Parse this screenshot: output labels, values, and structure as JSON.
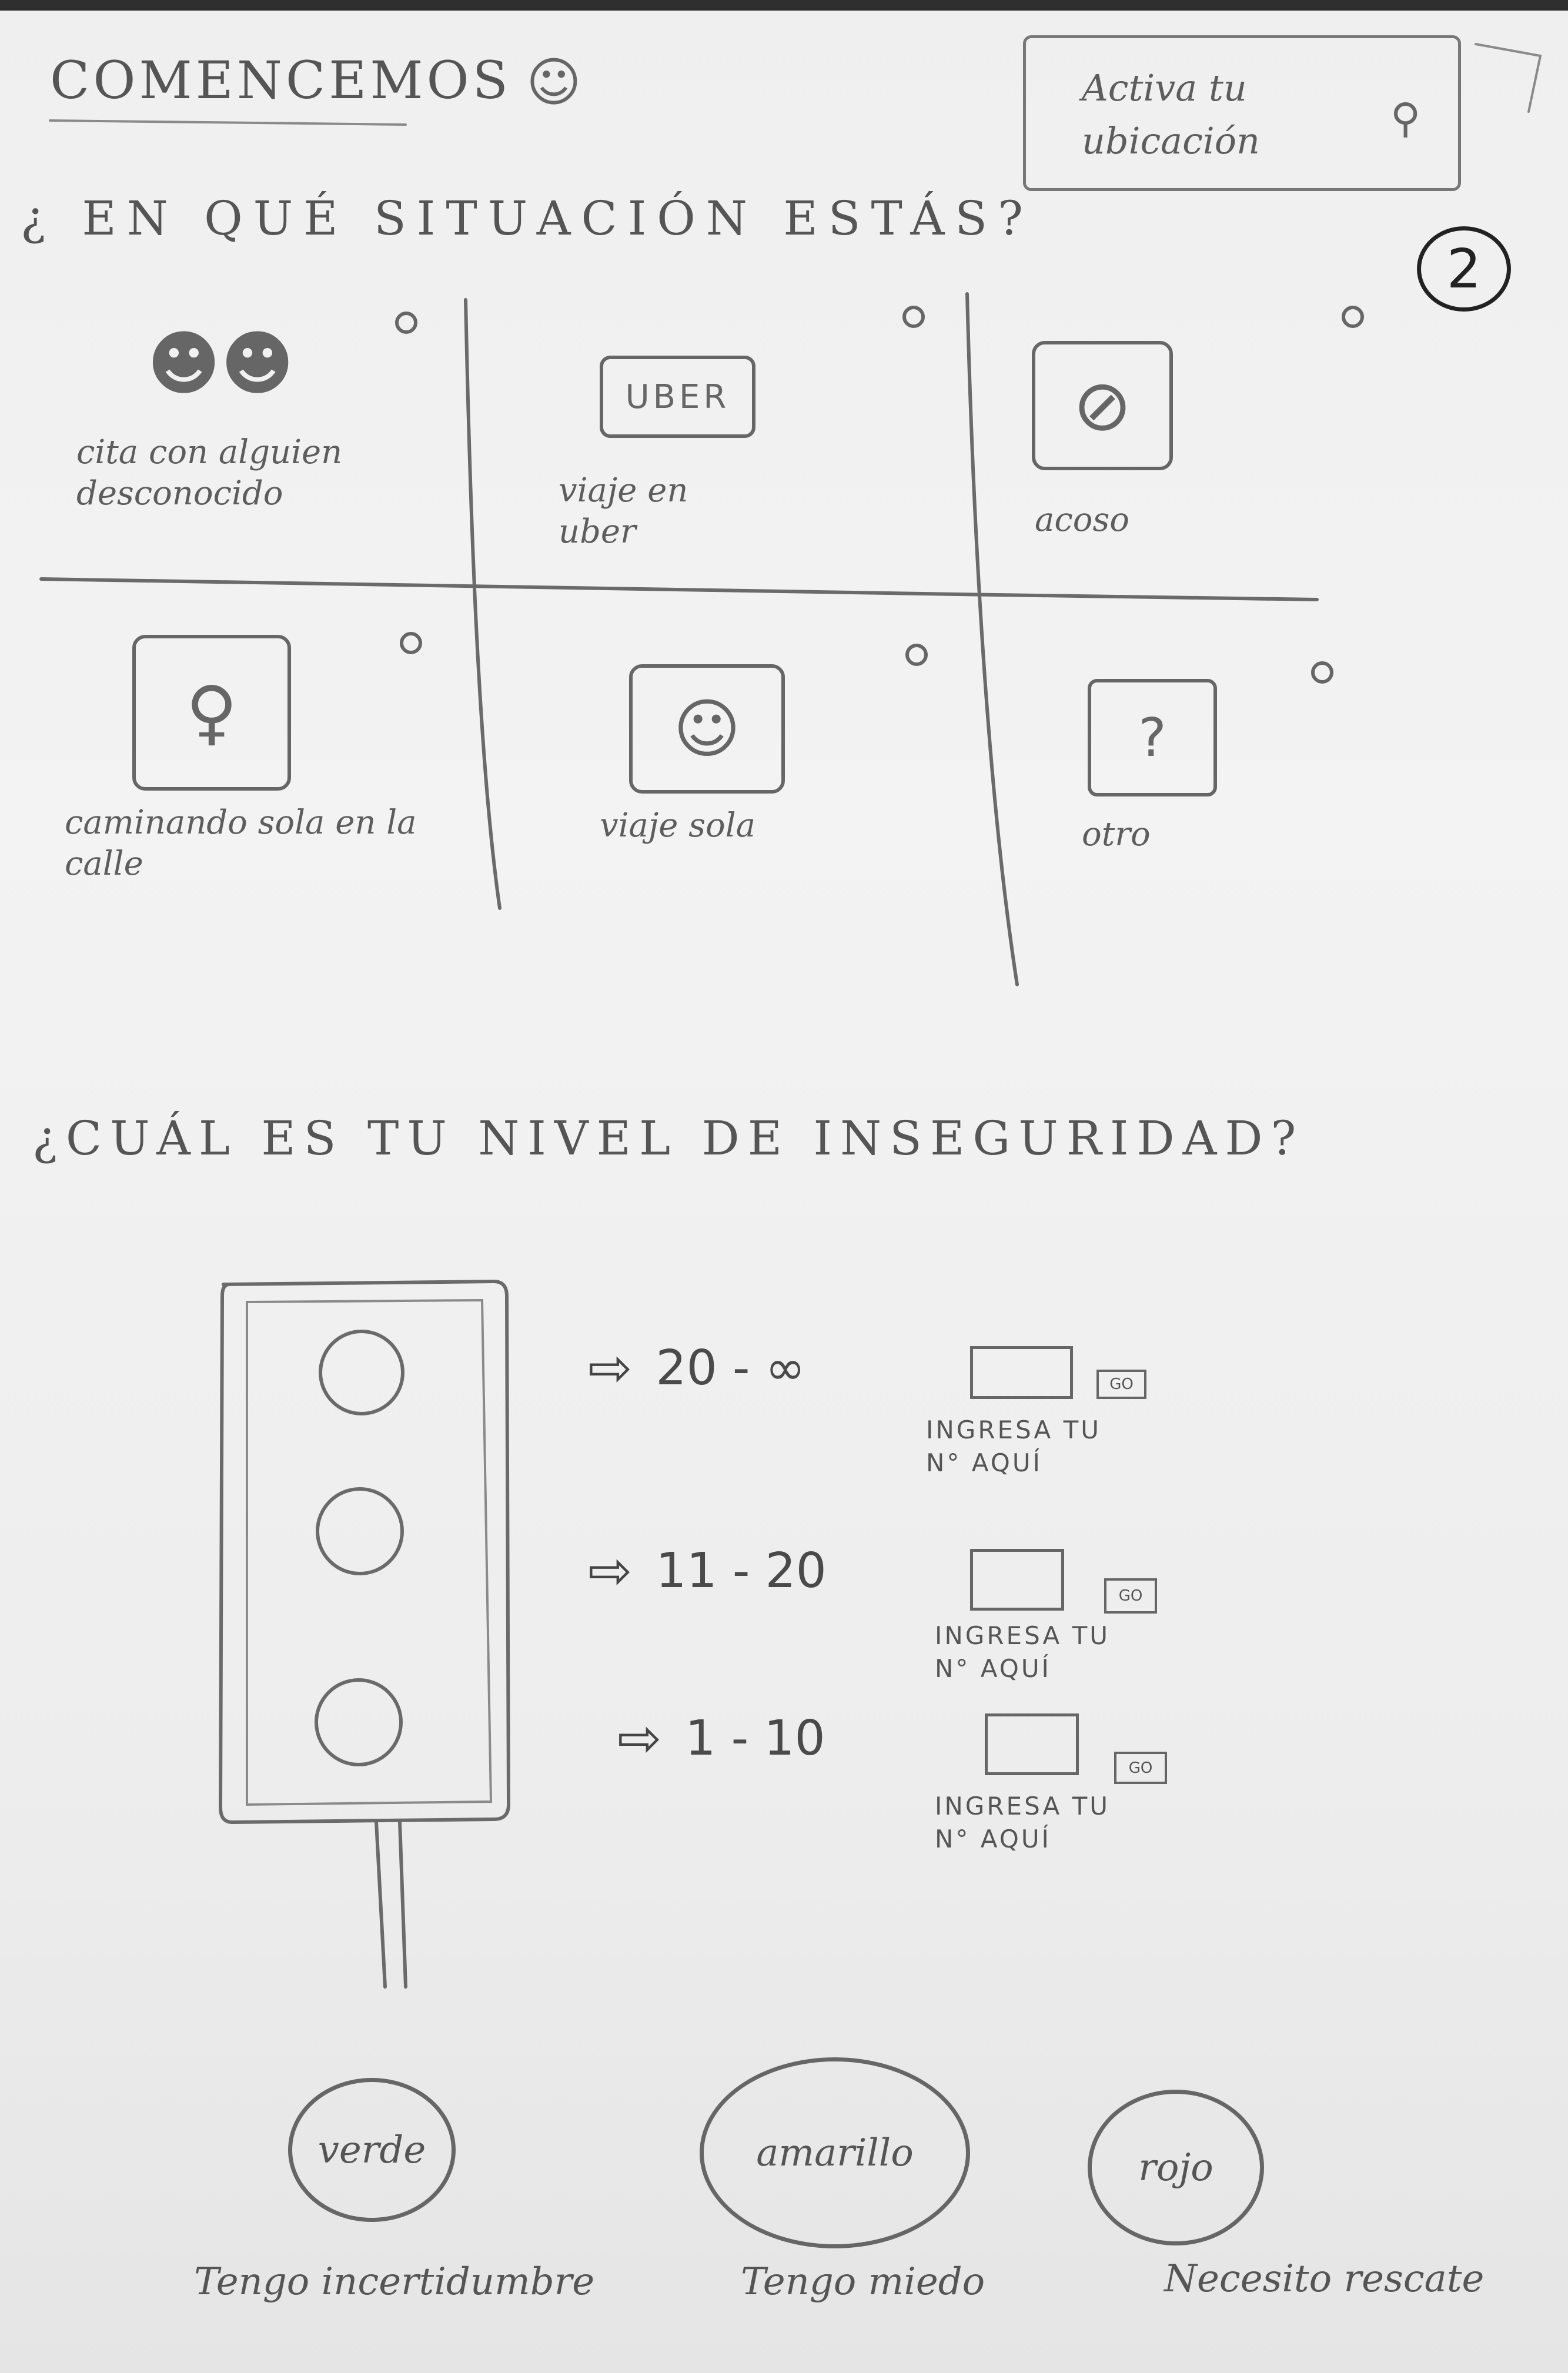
{
  "page_number": "2",
  "header": {
    "title": "COMENCEMOS",
    "location_button": "Activa tu ubicación"
  },
  "situation": {
    "question": "¿ EN QUÉ SITUACIÓN ESTÁS?",
    "options": [
      {
        "label": "cita con alguien desconocido",
        "icon": "couple-icon"
      },
      {
        "label": "UBER",
        "caption": "viaje en uber",
        "icon": "uber-icon"
      },
      {
        "label": "acoso",
        "icon": "prohibited-icon"
      },
      {
        "label": "caminando sola en la calle",
        "icon": "woman-icon"
      },
      {
        "label": "viaje sola",
        "icon": "smile-icon"
      },
      {
        "label": "otro",
        "icon": "question-icon"
      }
    ]
  },
  "insecurity": {
    "question": "¿CUÁL ES TU NIVEL DE INSEGURIDAD?",
    "levels": [
      {
        "range": "20 - ∞",
        "hint": "INGRESA TU N° AQUÍ",
        "go": "GO"
      },
      {
        "range": "11 - 20",
        "hint": "INGRESA TU N° AQUÍ",
        "go": "GO"
      },
      {
        "range": "1 - 10",
        "hint": "INGRESA TU N° AQUÍ",
        "go": "GO"
      }
    ]
  },
  "choices": [
    {
      "label": "verde",
      "description": "Tengo incertidumbre"
    },
    {
      "label": "amarillo",
      "description": "Tengo miedo"
    },
    {
      "label": "rojo",
      "description": "Necesito rescate"
    }
  ]
}
